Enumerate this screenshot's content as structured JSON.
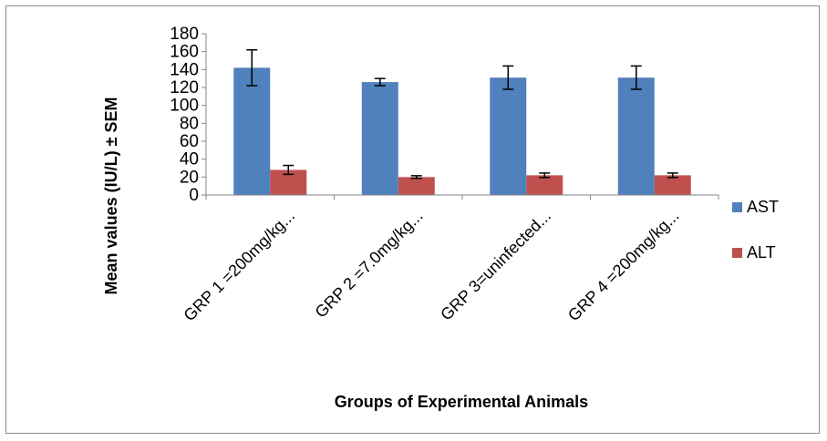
{
  "chart_data": {
    "type": "bar",
    "title": "",
    "xlabel": "Groups of Experimental Animals",
    "ylabel": "Mean values (IU/L) ± SEM",
    "ylim": [
      0,
      180
    ],
    "yticks": [
      0,
      20,
      40,
      60,
      80,
      100,
      120,
      140,
      160,
      180
    ],
    "categories": [
      "GRP 1 =200mg/kg...",
      "GRP 2 =7.0mg/kg...",
      "GRP 3=uninfected...",
      "GRP 4 =200mg/kg..."
    ],
    "series": [
      {
        "name": "AST",
        "color": "#4f81bd",
        "values": [
          142,
          126,
          131,
          131
        ],
        "errors": [
          20,
          4,
          13,
          13
        ]
      },
      {
        "name": "ALT",
        "color": "#c0504d",
        "values": [
          28,
          20,
          22,
          22
        ],
        "errors": [
          5,
          1.5,
          2.5,
          2.5
        ]
      }
    ],
    "grid": false,
    "legend": "right"
  }
}
